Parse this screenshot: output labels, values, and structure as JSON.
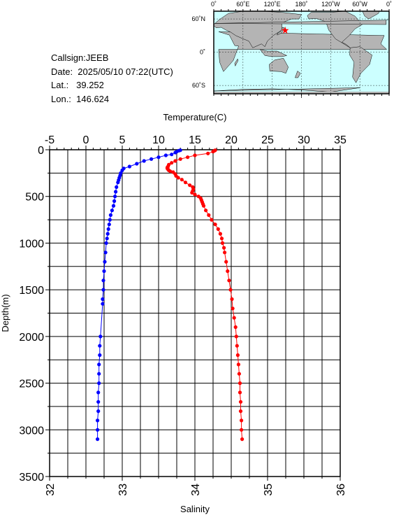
{
  "info": {
    "callsign": "Callsign:JEEB",
    "date": "Date:  2025/05/10 07:22(UTC)",
    "lat": "Lat.:   39.252",
    "lon": "Lon.:  146.624"
  },
  "map": {
    "lon_labels": [
      "0˚",
      "60˚E",
      "120˚E",
      "180˚",
      "120˚W",
      "60˚W",
      "0˚"
    ],
    "lat_labels": [
      "60˚N",
      "0˚",
      "60˚S"
    ],
    "station_lon": 146.624,
    "station_lat": 39.252,
    "ocean_color": "#ccffff",
    "land_color": "#b4b4b4",
    "marker_color": "#ff0000"
  },
  "chart_data": {
    "type": "line",
    "ylabel": "Depth(m)",
    "ylim": [
      0,
      3500
    ],
    "yticks": [
      0,
      500,
      1000,
      1500,
      2000,
      2500,
      3000,
      3500
    ],
    "y_inverted": true,
    "grid": true,
    "top_axis": {
      "label": "Temperature(C)",
      "range": [
        -5,
        35
      ],
      "ticks": [
        -5,
        0,
        5,
        10,
        15,
        20,
        25,
        30,
        35
      ]
    },
    "bottom_axis": {
      "label": "Salinity",
      "range": [
        32,
        36
      ],
      "ticks": [
        32,
        33,
        34,
        35,
        36
      ]
    },
    "series": [
      {
        "axis": "top",
        "color": "#0000ff",
        "depth": [
          5,
          10,
          20,
          30,
          50,
          60,
          80,
          100,
          120,
          150,
          180,
          200,
          220,
          250,
          275,
          300,
          325,
          350,
          400,
          450,
          500,
          550,
          600,
          650,
          700,
          750,
          800,
          850,
          900,
          950,
          1000,
          1100,
          1200,
          1300,
          1400,
          1500,
          1600,
          1650,
          2000,
          2100,
          2200,
          2300,
          2400,
          2500,
          2600,
          2700,
          2800,
          2900,
          3000,
          3100
        ],
        "values": [
          13.0,
          12.8,
          12.5,
          12.3,
          11.8,
          11.0,
          10.0,
          9.0,
          8.0,
          7.0,
          6.0,
          5.2,
          5.0,
          4.8,
          4.7,
          4.6,
          4.5,
          4.4,
          4.2,
          4.1,
          4.0,
          3.9,
          3.8,
          3.6,
          3.4,
          3.3,
          3.2,
          3.1,
          3.0,
          2.9,
          2.8,
          2.7,
          2.6,
          2.5,
          2.4,
          2.4,
          2.3,
          2.3,
          2.0,
          1.9,
          1.9,
          1.8,
          1.8,
          1.8,
          1.7,
          1.7,
          1.7,
          1.6,
          1.6,
          1.6
        ]
      },
      {
        "axis": "bottom",
        "color": "#ff0000",
        "depth": [
          5,
          10,
          20,
          40,
          60,
          80,
          100,
          120,
          140,
          160,
          180,
          190,
          200,
          210,
          220,
          230,
          240,
          260,
          280,
          300,
          320,
          350,
          380,
          400,
          420,
          440,
          460,
          480,
          500,
          520,
          540,
          560,
          580,
          600,
          650,
          700,
          750,
          800,
          850,
          900,
          950,
          1000,
          1050,
          1100,
          1200,
          1300,
          1400,
          1500,
          1600,
          1700,
          1800,
          1900,
          2000,
          2100,
          2200,
          2300,
          2400,
          2500,
          2600,
          2700,
          2800,
          2900,
          3000,
          3100
        ],
        "values": [
          34.28,
          34.27,
          34.25,
          34.18,
          34.0,
          33.9,
          33.8,
          33.73,
          33.68,
          33.64,
          33.63,
          33.62,
          33.62,
          33.63,
          33.64,
          33.66,
          33.7,
          33.73,
          33.74,
          33.77,
          33.82,
          33.87,
          33.93,
          33.97,
          33.98,
          33.97,
          33.96,
          34.0,
          34.05,
          34.08,
          34.09,
          34.1,
          34.11,
          34.12,
          34.15,
          34.19,
          34.23,
          34.28,
          34.32,
          34.35,
          34.37,
          34.38,
          34.4,
          34.41,
          34.43,
          34.45,
          34.47,
          34.49,
          34.51,
          34.52,
          34.54,
          34.56,
          34.57,
          34.58,
          34.59,
          34.6,
          34.61,
          34.62,
          34.62,
          34.63,
          34.63,
          34.64,
          34.64,
          34.65
        ]
      }
    ]
  }
}
